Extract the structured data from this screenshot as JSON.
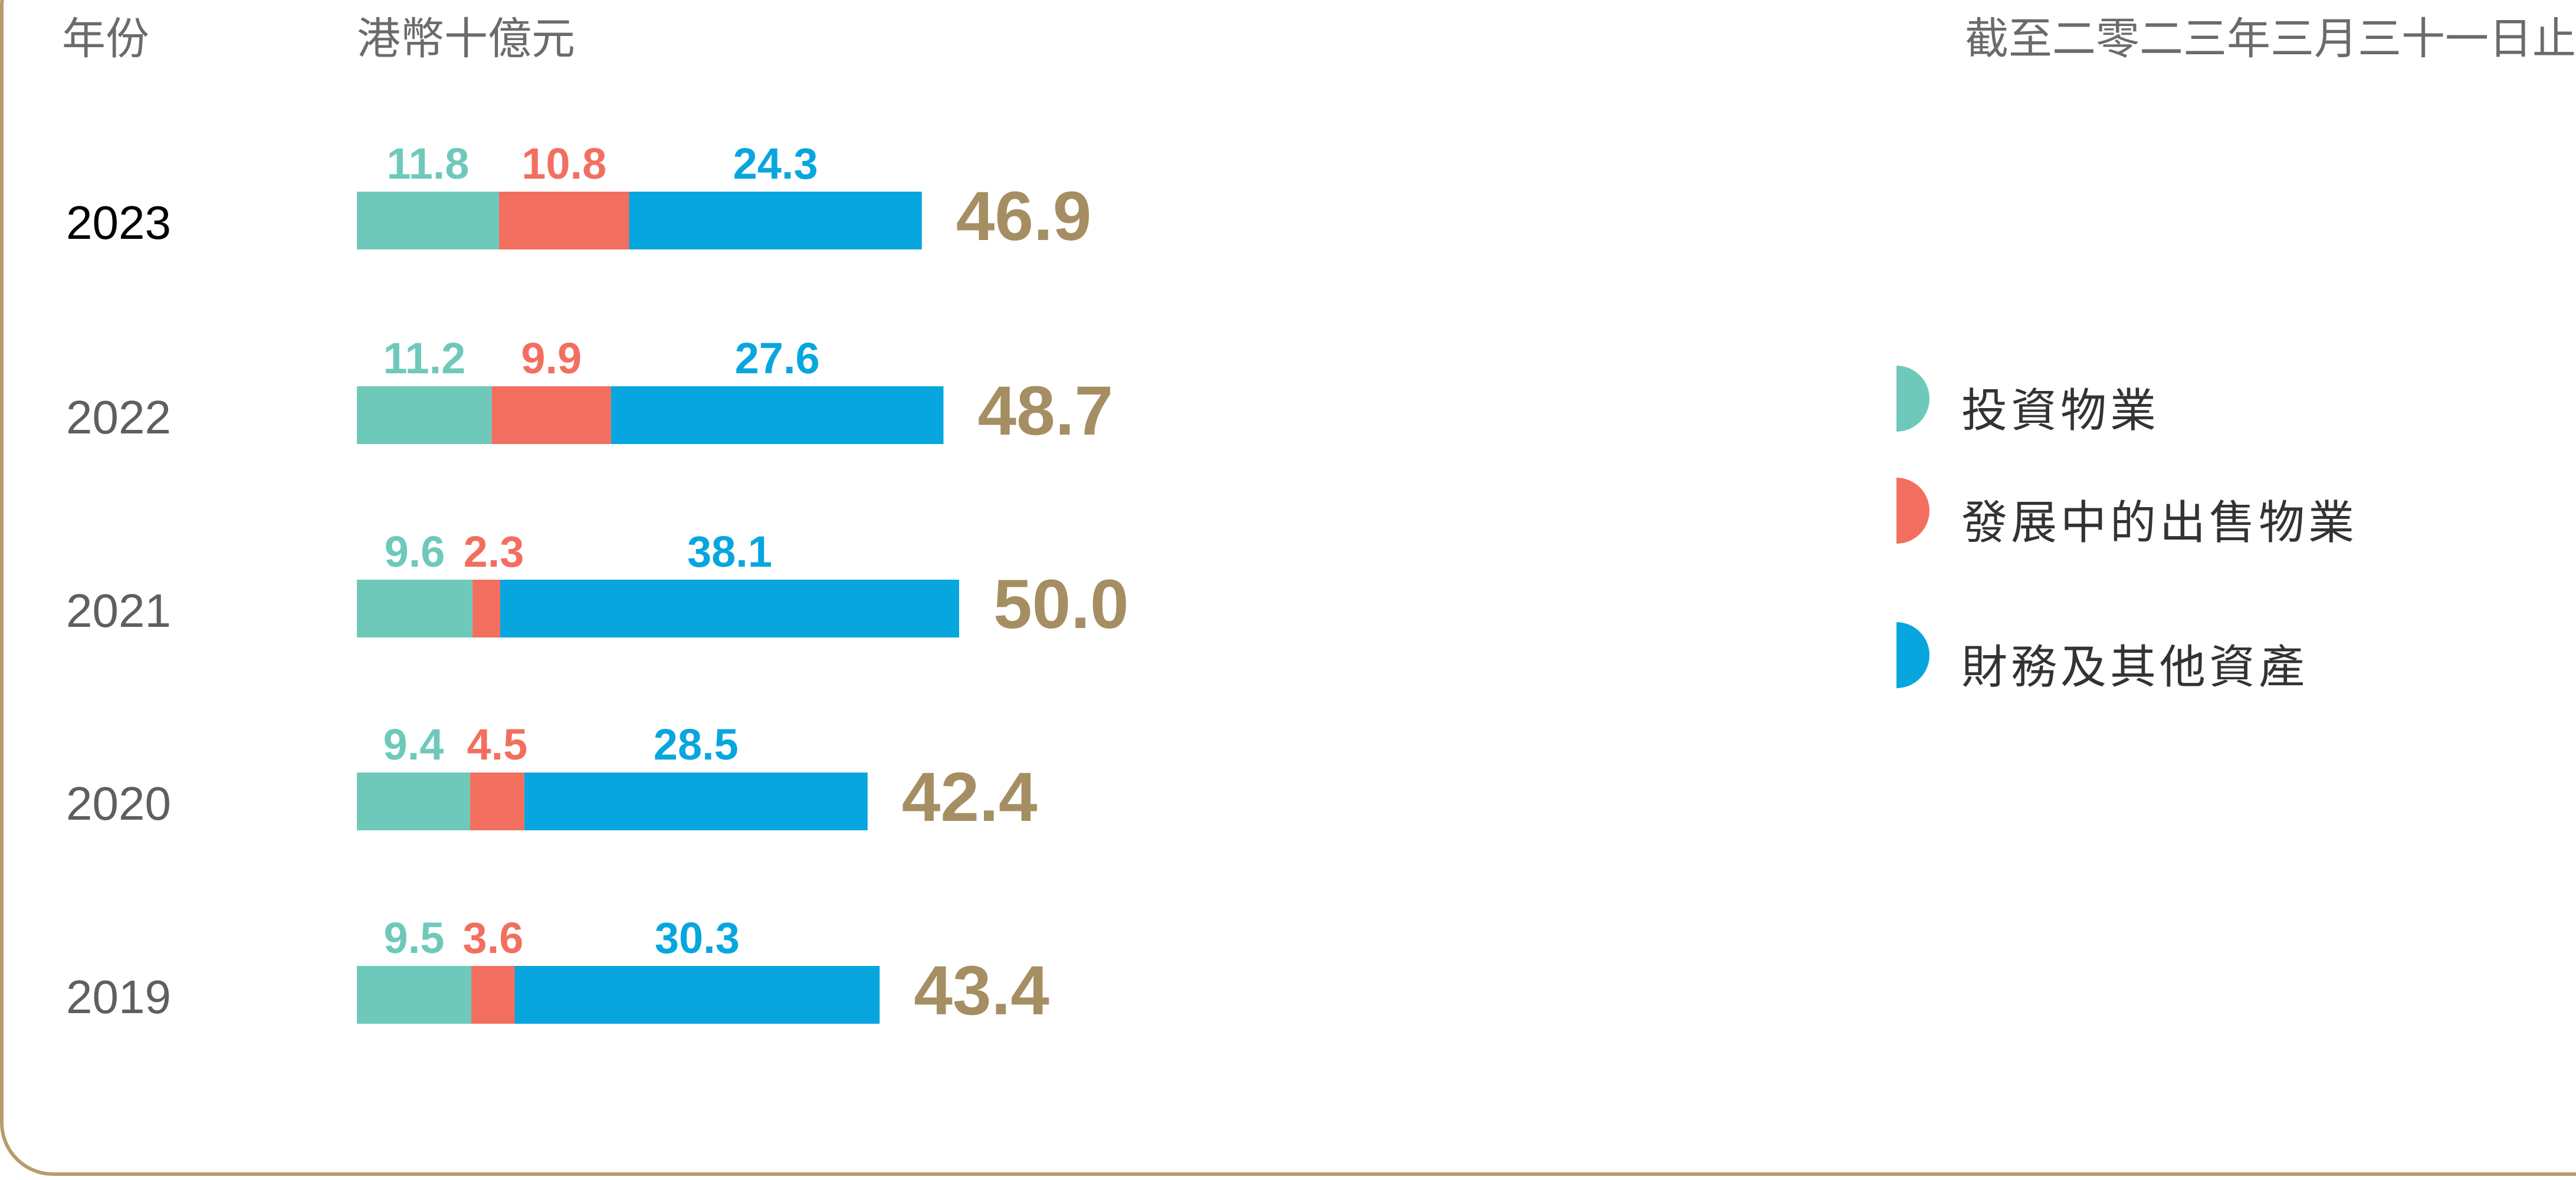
{
  "header": {
    "year_col": "年份",
    "unit": "港幣十億元",
    "as_of": "截至二零二三年三月三十一日止"
  },
  "colors": {
    "investment": "#6fc9bb",
    "development": "#f26f60",
    "financial": "#08a6df",
    "total": "#a68e63",
    "year": "#5f5f5f",
    "year_highlight": "#000000",
    "border": "#b89a6c"
  },
  "chart_data": {
    "type": "bar",
    "orientation": "horizontal",
    "stacked": true,
    "title": "",
    "xlabel": "",
    "ylabel": "年份",
    "unit": "港幣十億元",
    "categories": [
      "2023",
      "2022",
      "2021",
      "2020",
      "2019"
    ],
    "series": [
      {
        "name": "投資物業",
        "color": "#6fc9bb",
        "values": [
          11.8,
          11.2,
          9.6,
          9.4,
          9.5
        ]
      },
      {
        "name": "發展中的出售物業",
        "color": "#f26f60",
        "values": [
          10.8,
          9.9,
          2.3,
          4.5,
          3.6
        ]
      },
      {
        "name": "財務及其他資產",
        "color": "#08a6df",
        "values": [
          24.3,
          27.6,
          38.1,
          28.5,
          30.3
        ]
      }
    ],
    "totals": [
      "46.9",
      "48.7",
      "50.0",
      "42.4",
      "43.4"
    ],
    "segment_labels": [
      [
        "11.8",
        "10.8",
        "24.3"
      ],
      [
        "11.2",
        "9.9",
        "27.6"
      ],
      [
        "9.6",
        "2.3",
        "38.1"
      ],
      [
        "9.4",
        "4.5",
        "28.5"
      ],
      [
        "9.5",
        "3.6",
        "30.3"
      ]
    ],
    "highlight_category": "2023",
    "grid": false,
    "legend_position": "right"
  }
}
